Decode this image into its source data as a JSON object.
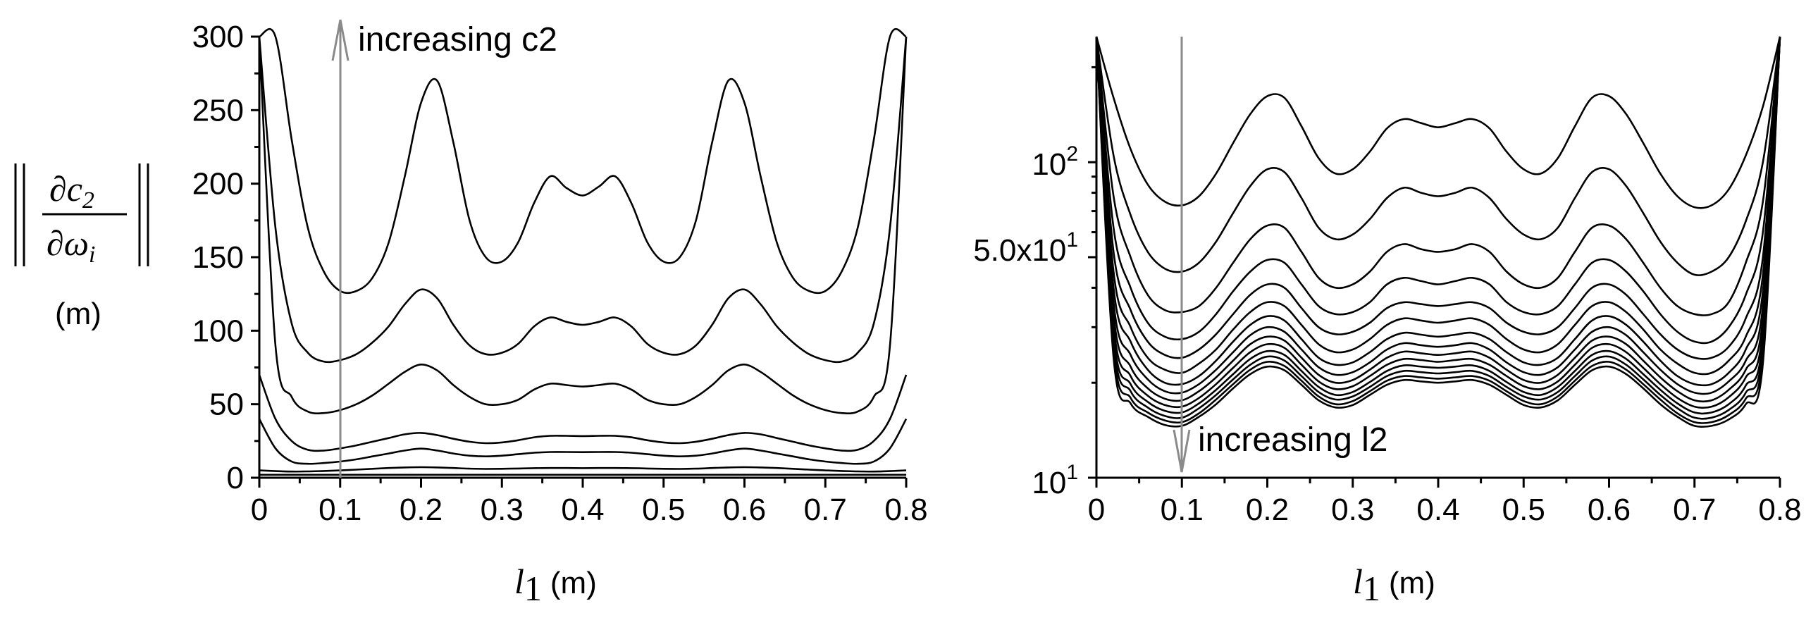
{
  "chart_data": [
    {
      "type": "line",
      "title": "",
      "xlabel": "l1 (m)",
      "ylabel": "||∂c2/∂ωi|| (m)",
      "xlim": [
        0,
        0.8
      ],
      "ylim": [
        0,
        300
      ],
      "yscale": "linear",
      "grid": false,
      "x_ticks": [
        "0",
        "0.1",
        "0.2",
        "0.3",
        "0.4",
        "0.5",
        "0.6",
        "0.7",
        "0.8"
      ],
      "y_ticks": [
        "0",
        "50",
        "100",
        "150",
        "200",
        "250",
        "300"
      ],
      "annotation": {
        "text": "increasing c2",
        "x": 0.1,
        "direction": "up"
      },
      "x": [
        0.0,
        0.02,
        0.04,
        0.06,
        0.08,
        0.1,
        0.12,
        0.14,
        0.16,
        0.18,
        0.2,
        0.22,
        0.24,
        0.26,
        0.28,
        0.3,
        0.32,
        0.34,
        0.36,
        0.38,
        0.4,
        0.42,
        0.44,
        0.46,
        0.48,
        0.5,
        0.52,
        0.54,
        0.56,
        0.58,
        0.6,
        0.62,
        0.64,
        0.66,
        0.68,
        0.7,
        0.72,
        0.74,
        0.76,
        0.78,
        0.8
      ],
      "series": [
        {
          "values": [
            2.0,
            2.0,
            2.0,
            2.0,
            2.0,
            2.0,
            2.0,
            2.0,
            2.0,
            2.0,
            2.0,
            2.0,
            2.0,
            2.0,
            2.0,
            2.0,
            2.0,
            2.0,
            2.0,
            2.0,
            2.0,
            2.0,
            2.0,
            2.0,
            2.0,
            2.0,
            2.0,
            2.0,
            2.0,
            2.0,
            2.0,
            2.0,
            2.0,
            2.0,
            2.0,
            2.0,
            2.0,
            2.0,
            2.0,
            2.0,
            2.0
          ]
        },
        {
          "values": [
            5.0,
            4.5,
            4.2,
            4.3,
            4.6,
            5.0,
            5.5,
            6.1,
            6.6,
            7.0,
            7.2,
            7.0,
            6.6,
            6.2,
            6.0,
            6.1,
            6.3,
            6.5,
            6.6,
            6.6,
            6.5,
            6.6,
            6.6,
            6.5,
            6.3,
            6.1,
            6.0,
            6.2,
            6.6,
            7.0,
            7.2,
            7.0,
            6.6,
            6.1,
            5.5,
            5.0,
            4.6,
            4.3,
            4.2,
            4.5,
            5.0
          ]
        },
        {
          "values": [
            40.0,
            20.0,
            11.0,
            9.5,
            10.0,
            11.0,
            12.5,
            14.5,
            16.5,
            18.5,
            19.8,
            18.5,
            16.5,
            15.0,
            14.5,
            15.0,
            16.0,
            17.0,
            17.5,
            17.5,
            17.4,
            17.5,
            17.5,
            17.0,
            16.0,
            15.0,
            14.5,
            15.0,
            16.5,
            18.5,
            19.8,
            18.5,
            16.5,
            14.5,
            12.5,
            11.0,
            10.0,
            9.5,
            11.0,
            20.0,
            40.0
          ]
        },
        {
          "values": [
            70.0,
            40.0,
            25.0,
            19.0,
            18.5,
            20.0,
            22.0,
            24.5,
            27.0,
            29.5,
            30.5,
            29.0,
            26.5,
            24.5,
            23.5,
            24.0,
            25.5,
            27.5,
            28.5,
            28.5,
            28.3,
            28.5,
            28.5,
            27.5,
            25.5,
            24.0,
            23.5,
            24.5,
            26.5,
            29.0,
            30.5,
            29.5,
            27.0,
            24.5,
            22.0,
            20.0,
            18.5,
            19.0,
            25.0,
            40.0,
            70.0
          ]
        },
        {
          "values": [
            300.0,
            90.0,
            55.0,
            45.0,
            44.0,
            46.0,
            50.0,
            56.0,
            64.0,
            72.0,
            77.0,
            73.0,
            63.0,
            55.0,
            50.0,
            50.0,
            53.0,
            60.0,
            64.0,
            63.0,
            62.0,
            63.0,
            64.0,
            60.0,
            53.0,
            50.0,
            50.0,
            55.0,
            63.0,
            73.0,
            77.0,
            72.0,
            64.0,
            56.0,
            50.0,
            46.0,
            44.0,
            45.0,
            55.0,
            90.0,
            300.0
          ]
        },
        {
          "values": [
            300.0,
            170.0,
            105.0,
            85.0,
            79.0,
            80.0,
            84.0,
            92.0,
            103.0,
            118.0,
            128.0,
            122.0,
            104.0,
            90.0,
            84.0,
            85.0,
            91.0,
            103.0,
            109.0,
            106.0,
            104.0,
            106.0,
            109.0,
            103.0,
            91.0,
            85.0,
            84.0,
            90.0,
            104.0,
            122.0,
            128.0,
            118.0,
            103.0,
            92.0,
            84.0,
            80.0,
            79.0,
            85.0,
            105.0,
            170.0,
            300.0
          ]
        },
        {
          "values": [
            300.0,
            300.0,
            230.0,
            170.0,
            140.0,
            127.0,
            127.0,
            136.0,
            160.0,
            205.0,
            255.0,
            270.0,
            228.0,
            175.0,
            150.0,
            147.0,
            160.0,
            187.0,
            205.0,
            197.0,
            192.0,
            198.0,
            205.0,
            187.0,
            160.0,
            147.0,
            150.0,
            175.0,
            228.0,
            270.0,
            255.0,
            205.0,
            160.0,
            136.0,
            127.0,
            127.0,
            140.0,
            170.0,
            230.0,
            300.0,
            300.0
          ]
        }
      ]
    },
    {
      "type": "line",
      "title": "",
      "xlabel": "l1 (m)",
      "ylabel": "",
      "xlim": [
        0,
        0.8
      ],
      "ylim": [
        10,
        250
      ],
      "yscale": "log",
      "grid": false,
      "x_ticks": [
        "0",
        "0.1",
        "0.2",
        "0.3",
        "0.4",
        "0.5",
        "0.6",
        "0.7",
        "0.8"
      ],
      "y_ticks": [
        "10^1",
        "5.0x10^1",
        "10^2"
      ],
      "annotation": {
        "text": "increasing l2",
        "x": 0.1,
        "direction": "down"
      },
      "x": [
        0.0,
        0.02,
        0.04,
        0.06,
        0.08,
        0.1,
        0.12,
        0.14,
        0.16,
        0.18,
        0.2,
        0.22,
        0.24,
        0.26,
        0.28,
        0.3,
        0.32,
        0.34,
        0.36,
        0.38,
        0.4,
        0.42,
        0.44,
        0.46,
        0.48,
        0.5,
        0.52,
        0.54,
        0.56,
        0.58,
        0.6,
        0.62,
        0.64,
        0.66,
        0.68,
        0.7,
        0.72,
        0.74,
        0.76,
        0.78,
        0.8
      ],
      "series": [
        {
          "values": [
            250.0,
            160.0,
            110.0,
            85.0,
            75.0,
            73.0,
            78.0,
            92.0,
            115.0,
            142.0,
            162.0,
            160.0,
            130.0,
            103.0,
            92.0,
            95.0,
            108.0,
            128.0,
            137.0,
            133.0,
            129.0,
            133.0,
            137.0,
            128.0,
            108.0,
            95.0,
            92.0,
            103.0,
            130.0,
            160.0,
            162.0,
            142.0,
            115.0,
            92.0,
            78.0,
            72.0,
            73.0,
            82.0,
            105.0,
            150.0,
            250.0
          ]
        },
        {
          "values": [
            250.0,
            105.0,
            68.0,
            52.0,
            46.0,
            45.0,
            48.0,
            56.0,
            69.0,
            84.0,
            95.0,
            93.0,
            77.0,
            62.0,
            57.0,
            59.0,
            66.0,
            77.0,
            83.0,
            80.0,
            78.0,
            80.0,
            83.0,
            77.0,
            66.0,
            59.0,
            57.0,
            62.0,
            77.0,
            93.0,
            95.0,
            84.0,
            69.0,
            56.0,
            48.0,
            44.0,
            45.0,
            50.0,
            65.0,
            100.0,
            250.0
          ]
        },
        {
          "values": [
            250.0,
            78.0,
            50.0,
            38.0,
            34.0,
            33.5,
            35.0,
            40.0,
            48.0,
            57.0,
            63.0,
            62.0,
            52.0,
            43.0,
            40.0,
            41.0,
            45.0,
            52.0,
            55.0,
            53.0,
            52.0,
            53.0,
            55.0,
            52.0,
            45.0,
            41.0,
            40.0,
            43.0,
            52.0,
            62.0,
            63.0,
            57.0,
            48.0,
            40.0,
            35.0,
            33.0,
            33.0,
            36.0,
            48.0,
            75.0,
            250.0
          ]
        },
        {
          "values": [
            250.0,
            62.0,
            40.0,
            31.0,
            28.0,
            27.5,
            29.0,
            33.0,
            39.0,
            45.0,
            49.0,
            48.0,
            41.0,
            35.0,
            33.0,
            33.5,
            36.0,
            41.0,
            43.0,
            42.0,
            41.0,
            42.0,
            43.0,
            41.0,
            36.0,
            33.5,
            33.0,
            35.0,
            41.0,
            48.0,
            49.0,
            45.0,
            39.0,
            33.0,
            29.0,
            27.0,
            27.0,
            30.0,
            38.0,
            60.0,
            250.0
          ]
        },
        {
          "values": [
            250.0,
            52.0,
            34.0,
            27.0,
            24.5,
            24.0,
            25.5,
            28.5,
            33.0,
            38.0,
            41.0,
            40.0,
            34.5,
            30.0,
            28.5,
            29.0,
            31.0,
            34.5,
            36.0,
            35.5,
            35.0,
            35.5,
            36.0,
            34.5,
            31.0,
            29.0,
            28.5,
            30.0,
            34.5,
            40.0,
            41.0,
            38.0,
            33.0,
            28.5,
            25.5,
            24.0,
            24.0,
            26.0,
            32.0,
            50.0,
            250.0
          ]
        },
        {
          "values": [
            250.0,
            45.0,
            30.0,
            24.0,
            22.0,
            21.5,
            23.0,
            25.5,
            29.5,
            33.5,
            36.0,
            35.0,
            30.5,
            26.5,
            25.0,
            25.5,
            27.5,
            30.5,
            32.0,
            31.5,
            31.0,
            31.5,
            32.0,
            30.5,
            27.5,
            25.5,
            25.0,
            26.5,
            30.5,
            35.0,
            36.0,
            33.5,
            29.5,
            25.5,
            23.0,
            21.5,
            21.5,
            23.5,
            28.0,
            44.0,
            250.0
          ]
        },
        {
          "values": [
            250.0,
            40.0,
            27.0,
            22.0,
            20.0,
            19.8,
            21.0,
            23.5,
            27.0,
            30.5,
            32.5,
            31.5,
            27.5,
            24.0,
            22.8,
            23.2,
            25.0,
            27.5,
            28.8,
            28.4,
            28.0,
            28.4,
            28.8,
            27.5,
            25.0,
            23.2,
            22.8,
            24.0,
            27.5,
            31.5,
            32.5,
            30.5,
            27.0,
            23.5,
            21.0,
            19.8,
            19.8,
            21.5,
            25.5,
            39.0,
            250.0
          ]
        },
        {
          "values": [
            250.0,
            36.0,
            24.5,
            20.5,
            18.8,
            18.6,
            19.8,
            22.0,
            25.0,
            28.3,
            30.0,
            29.0,
            25.5,
            22.4,
            21.2,
            21.6,
            23.2,
            25.5,
            26.7,
            26.3,
            26.0,
            26.3,
            26.7,
            25.5,
            23.2,
            21.6,
            21.2,
            22.4,
            25.5,
            29.0,
            30.0,
            28.3,
            25.0,
            22.0,
            19.8,
            18.6,
            18.6,
            20.2,
            23.5,
            35.0,
            250.0
          ]
        },
        {
          "values": [
            250.0,
            33.0,
            22.5,
            19.2,
            17.8,
            17.6,
            18.8,
            20.8,
            23.5,
            26.5,
            28.0,
            27.2,
            24.0,
            21.2,
            20.0,
            20.4,
            22.0,
            24.0,
            25.1,
            24.8,
            24.5,
            24.8,
            25.1,
            24.0,
            22.0,
            20.4,
            20.0,
            21.2,
            24.0,
            27.2,
            28.0,
            26.5,
            23.5,
            20.8,
            18.8,
            17.6,
            17.6,
            19.0,
            22.0,
            32.0,
            250.0
          ]
        },
        {
          "values": [
            250.0,
            30.5,
            21.0,
            18.2,
            17.0,
            16.8,
            17.9,
            19.8,
            22.3,
            25.0,
            26.5,
            25.8,
            22.8,
            20.2,
            19.1,
            19.5,
            21.0,
            22.8,
            23.8,
            23.6,
            23.3,
            23.6,
            23.8,
            22.8,
            21.0,
            19.5,
            19.1,
            20.2,
            22.8,
            25.8,
            26.5,
            25.0,
            22.3,
            19.8,
            17.9,
            16.8,
            16.8,
            18.0,
            20.8,
            29.5,
            250.0
          ]
        },
        {
          "values": [
            250.0,
            28.5,
            19.8,
            17.4,
            16.3,
            16.1,
            17.2,
            19.0,
            21.3,
            23.8,
            25.2,
            24.5,
            21.8,
            19.4,
            18.3,
            18.7,
            20.1,
            21.8,
            22.7,
            22.5,
            22.3,
            22.5,
            22.7,
            21.8,
            20.1,
            18.7,
            18.3,
            19.4,
            21.8,
            24.5,
            25.2,
            23.8,
            21.3,
            19.0,
            17.2,
            16.1,
            16.1,
            17.1,
            19.6,
            27.5,
            250.0
          ]
        },
        {
          "values": [
            250.0,
            27.0,
            18.8,
            16.7,
            15.7,
            15.5,
            16.6,
            18.3,
            20.5,
            22.8,
            24.2,
            23.5,
            21.0,
            18.7,
            17.7,
            18.1,
            19.4,
            21.0,
            21.8,
            21.6,
            21.4,
            21.6,
            21.8,
            21.0,
            19.4,
            18.1,
            17.7,
            18.7,
            21.0,
            23.5,
            24.2,
            22.8,
            20.5,
            18.3,
            16.6,
            15.5,
            15.5,
            16.4,
            18.6,
            26.0,
            250.0
          ]
        },
        {
          "values": [
            250.0,
            25.5,
            17.9,
            16.1,
            15.2,
            15.0,
            16.0,
            17.7,
            19.8,
            22.0,
            23.3,
            22.6,
            20.3,
            18.1,
            17.1,
            17.5,
            18.8,
            20.3,
            21.0,
            20.8,
            20.6,
            20.8,
            21.0,
            20.3,
            18.8,
            17.5,
            17.1,
            18.1,
            20.3,
            22.6,
            23.3,
            22.0,
            19.8,
            17.7,
            16.0,
            15.0,
            15.0,
            15.8,
            17.8,
            24.5,
            250.0
          ]
        },
        {
          "values": [
            250.0,
            24.0,
            17.2,
            15.6,
            14.7,
            14.6,
            15.6,
            17.1,
            19.2,
            21.3,
            22.5,
            21.9,
            19.7,
            17.6,
            16.7,
            17.0,
            18.3,
            19.7,
            20.4,
            20.2,
            20.0,
            20.2,
            20.4,
            19.7,
            18.3,
            17.0,
            16.7,
            17.6,
            19.7,
            21.9,
            22.5,
            21.3,
            19.2,
            17.1,
            15.6,
            14.6,
            14.6,
            15.3,
            17.1,
            23.0,
            250.0
          ]
        }
      ]
    }
  ]
}
